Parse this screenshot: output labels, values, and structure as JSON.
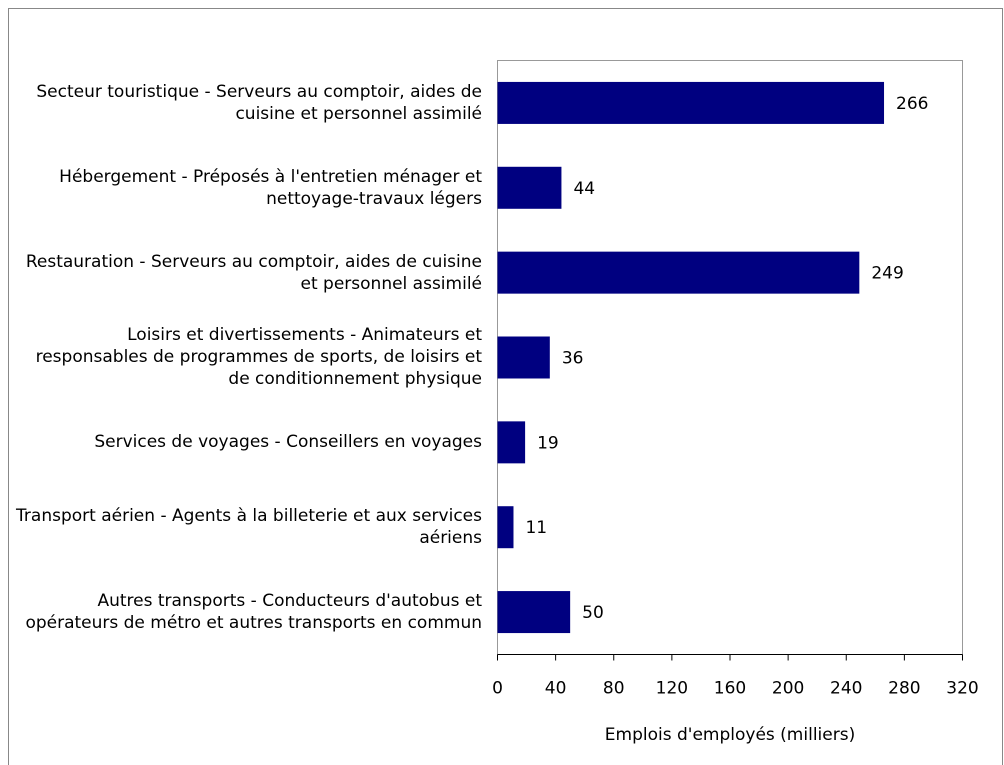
{
  "chart_data": {
    "type": "barh",
    "categories": [
      "Secteur touristique - Serveurs au comptoir, aides de cuisine et personnel assimilé",
      "Hébergement - Préposés à l'entretien ménager et nettoyage-travaux légers",
      "Restauration - Serveurs au comptoir, aides de cuisine et personnel assimilé",
      "Loisirs et divertissements - Animateurs et responsables de programmes de sports, de loisirs et de conditionnement physique",
      "Services de voyages - Conseillers en voyages",
      "Transport aérien - Agents à la billeterie et aux services aériens",
      "Autres transports - Conducteurs d'autobus et opérateurs de métro et autres transports en commun"
    ],
    "values": [
      266,
      44,
      249,
      36,
      19,
      11,
      50
    ],
    "color": "#000080",
    "xlabel": "Emplois d'employés (milliers)",
    "xlim": [
      0,
      320
    ],
    "xticks": [
      0,
      40,
      80,
      120,
      160,
      200,
      240,
      280,
      320
    ]
  }
}
